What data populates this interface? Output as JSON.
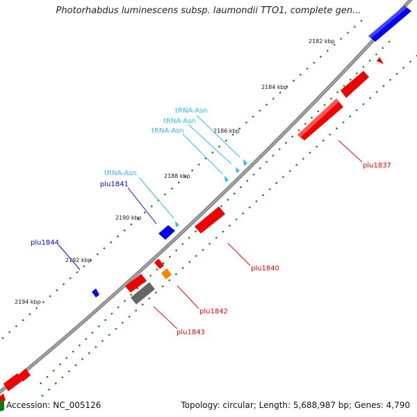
{
  "title": "Photorhabdus luminescens subsp. laumondii TTO1, complete gen...",
  "footer": {
    "accession": "Accession: NC_005126",
    "summary": "Topology: circular; Length: 5,688,987 bp; Genes: 4,790"
  },
  "colors": {
    "backbone": "#808080",
    "gene_forward": "#0000ee",
    "gene_reverse": "#ee0000",
    "trna": "#33bbee",
    "orange": "#ee8800",
    "gray_gene": "#666666",
    "tick_dots": "#117711"
  },
  "kbp_labels": [
    "2182 kbp",
    "2184 kbp",
    "2186 kbp",
    "2188 kbp",
    "2190 kbp",
    "2192 kbp",
    "2194 kbp"
  ],
  "trna_labels": [
    "tRNA-Asn",
    "tRNA-Asn",
    "tRNA-Asn",
    "tRNA-Asn"
  ],
  "gene_labels": {
    "plu1837": "plu1837",
    "plu1840": "plu1840",
    "plu1841": "plu1841",
    "plu1842": "plu1842",
    "plu1843": "plu1843",
    "plu1844": "plu1844"
  }
}
